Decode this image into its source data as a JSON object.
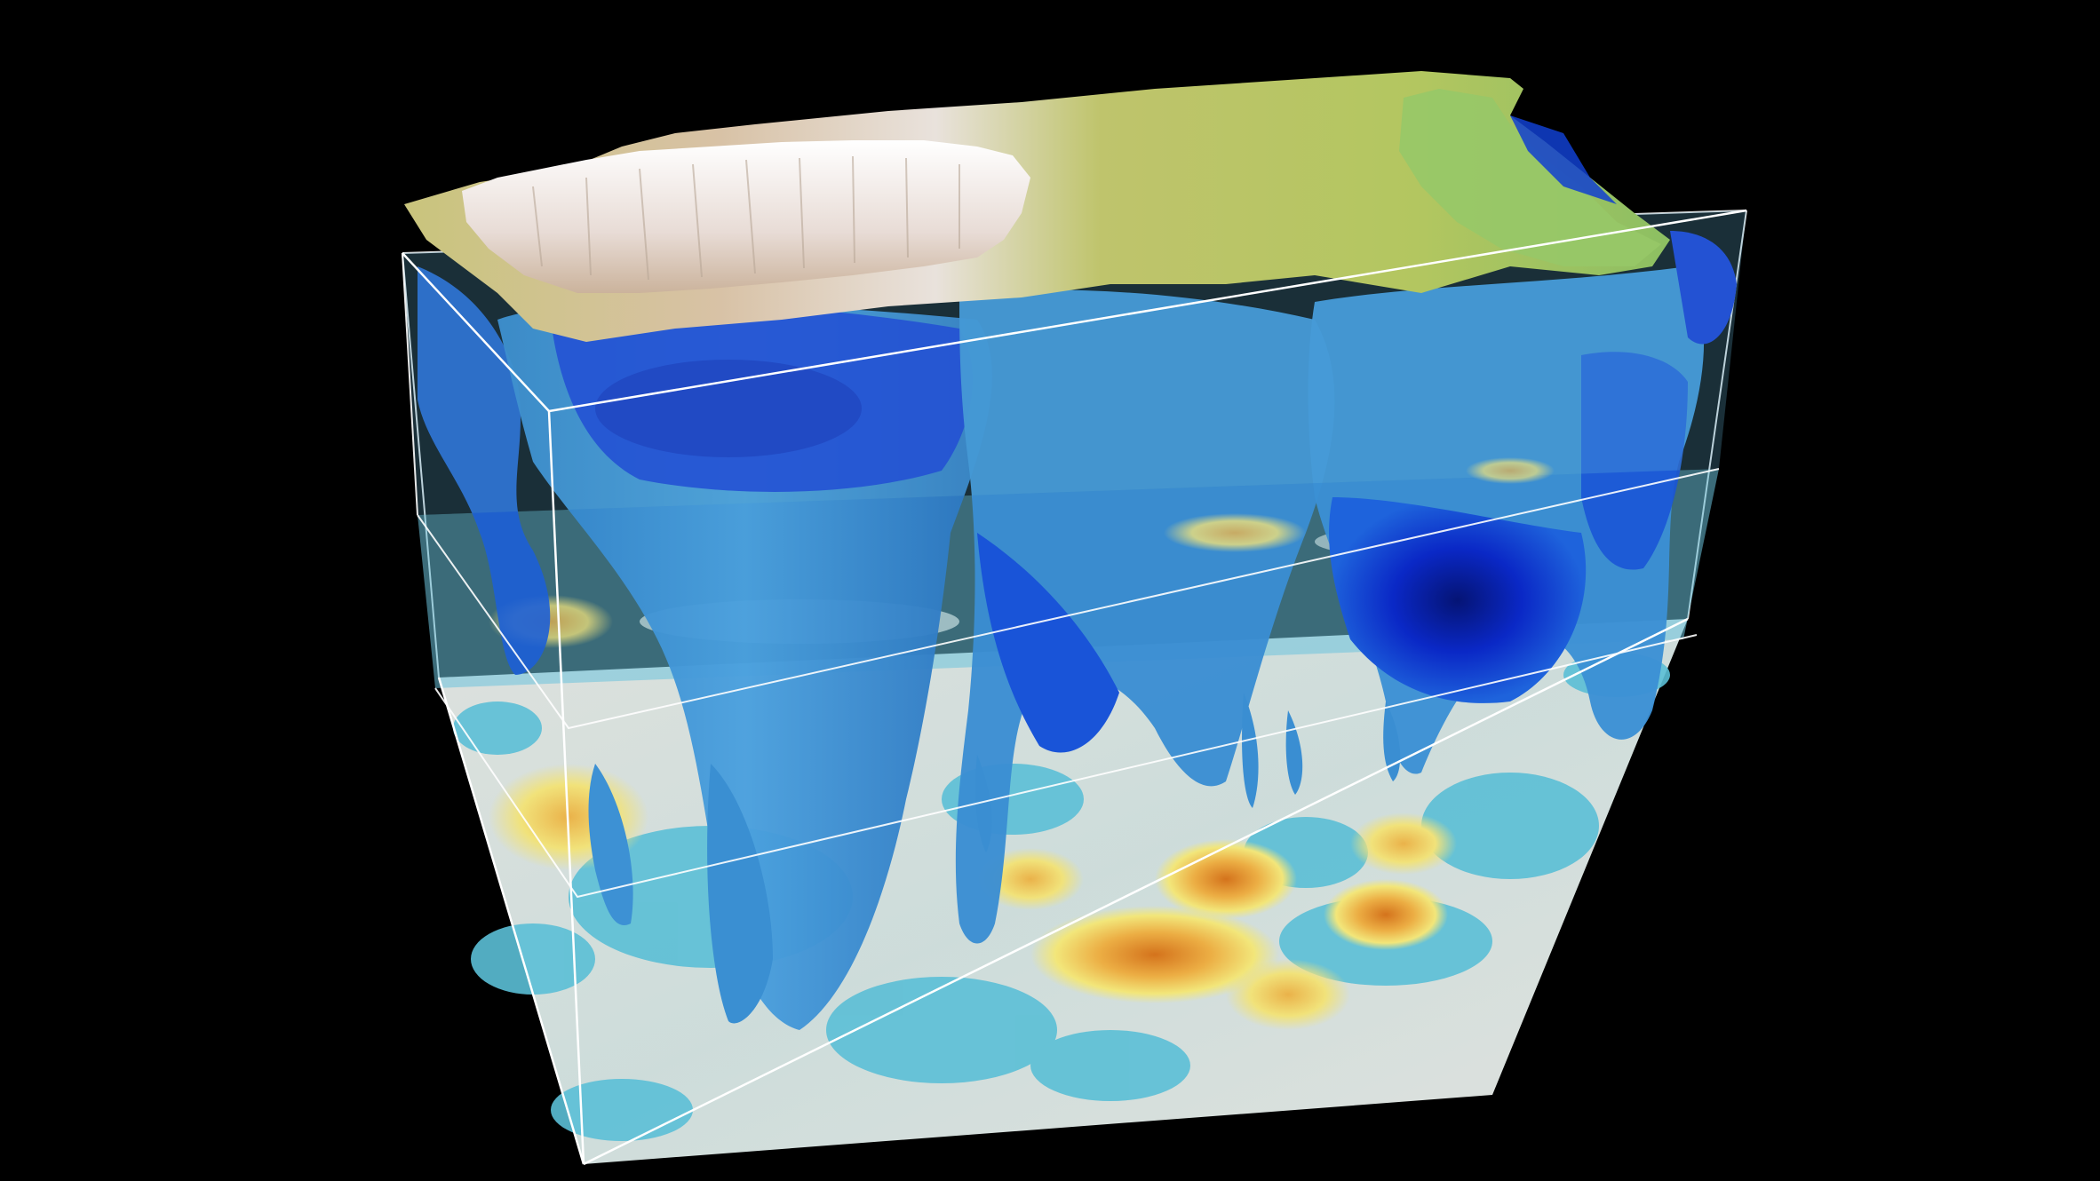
{
  "scene": {
    "background": "#000000",
    "frame_color": "#ffffff",
    "terrain_colors": {
      "lowland": "#b9c56a",
      "midland": "#cfc98a",
      "highland": "#d8b49a",
      "peak": "#f4f1ee",
      "green_ridge": "#8fc26a"
    },
    "isosurface_colors": {
      "light_blue": "#3d95d6",
      "mid_blue": "#1d63d9",
      "deep_blue": "#0a26c8",
      "darkest_blue": "#061a96"
    },
    "slice_colors": {
      "cyan": "#5fc4d8",
      "pale": "#e8ecea",
      "yellow": "#f0e26a",
      "orange": "#e8a640",
      "red_orange": "#d77b22"
    },
    "slices": [
      "upper-slice",
      "middle-slice",
      "bottom-slice"
    ]
  }
}
